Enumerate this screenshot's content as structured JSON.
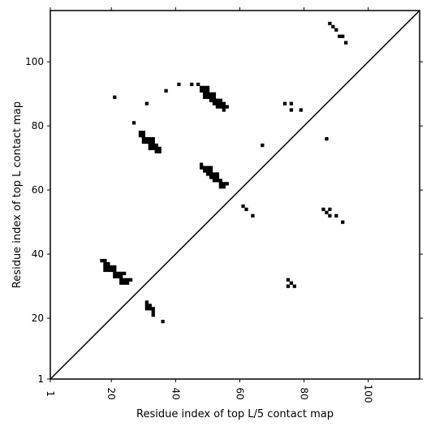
{
  "chart_data": {
    "type": "scatter",
    "title": "",
    "xlabel": "Residue index of top L/5 contact map",
    "ylabel": "Residue index of top L contact map",
    "xlim": [
      1,
      116
    ],
    "ylim": [
      1,
      116
    ],
    "xticks": [
      1,
      20,
      40,
      60,
      80,
      100
    ],
    "yticks": [
      1,
      20,
      40,
      60,
      80,
      100
    ],
    "grid": false,
    "diagonal": true,
    "marker": "square",
    "color": "#000000",
    "points": [
      [
        88,
        112
      ],
      [
        89,
        111
      ],
      [
        90,
        110
      ],
      [
        91,
        108
      ],
      [
        92,
        108
      ],
      [
        93,
        106
      ],
      [
        37,
        91
      ],
      [
        41,
        93
      ],
      [
        45,
        93
      ],
      [
        47,
        93
      ],
      [
        21,
        89
      ],
      [
        31,
        87
      ],
      [
        27,
        81
      ],
      [
        48,
        92
      ],
      [
        49,
        92
      ],
      [
        50,
        92
      ],
      [
        48,
        91
      ],
      [
        49,
        91
      ],
      [
        50,
        91
      ],
      [
        49,
        90
      ],
      [
        50,
        90
      ],
      [
        51,
        90
      ],
      [
        52,
        90
      ],
      [
        49,
        89
      ],
      [
        50,
        89
      ],
      [
        51,
        89
      ],
      [
        52,
        89
      ],
      [
        51,
        88
      ],
      [
        52,
        88
      ],
      [
        53,
        88
      ],
      [
        54,
        88
      ],
      [
        52,
        87
      ],
      [
        53,
        87
      ],
      [
        54,
        87
      ],
      [
        55,
        87
      ],
      [
        53,
        86
      ],
      [
        54,
        86
      ],
      [
        55,
        86
      ],
      [
        56,
        86
      ],
      [
        55,
        85
      ],
      [
        74,
        87
      ],
      [
        76,
        87
      ],
      [
        76,
        85
      ],
      [
        79,
        85
      ],
      [
        67,
        74
      ],
      [
        87,
        76
      ],
      [
        29,
        78
      ],
      [
        30,
        78
      ],
      [
        29,
        77
      ],
      [
        30,
        77
      ],
      [
        30,
        76
      ],
      [
        31,
        76
      ],
      [
        32,
        76
      ],
      [
        33,
        76
      ],
      [
        30,
        75
      ],
      [
        31,
        75
      ],
      [
        32,
        75
      ],
      [
        33,
        75
      ],
      [
        32,
        74
      ],
      [
        33,
        74
      ],
      [
        34,
        74
      ],
      [
        32,
        73
      ],
      [
        33,
        73
      ],
      [
        34,
        73
      ],
      [
        35,
        73
      ],
      [
        34,
        72
      ],
      [
        35,
        72
      ],
      [
        48,
        68
      ],
      [
        48,
        67
      ],
      [
        49,
        67
      ],
      [
        50,
        67
      ],
      [
        51,
        67
      ],
      [
        49,
        66
      ],
      [
        50,
        66
      ],
      [
        51,
        66
      ],
      [
        50,
        65
      ],
      [
        51,
        65
      ],
      [
        52,
        65
      ],
      [
        53,
        65
      ],
      [
        51,
        64
      ],
      [
        52,
        64
      ],
      [
        53,
        64
      ],
      [
        52,
        63
      ],
      [
        53,
        63
      ],
      [
        54,
        63
      ],
      [
        54,
        62
      ],
      [
        55,
        62
      ],
      [
        56,
        62
      ],
      [
        54,
        61
      ],
      [
        55,
        61
      ],
      [
        61,
        55
      ],
      [
        62,
        54
      ],
      [
        64,
        52
      ],
      [
        86,
        54
      ],
      [
        87,
        53
      ],
      [
        88,
        54
      ],
      [
        88,
        52
      ],
      [
        90,
        52
      ],
      [
        92,
        50
      ],
      [
        17,
        38
      ],
      [
        18,
        38
      ],
      [
        18,
        37
      ],
      [
        19,
        37
      ],
      [
        18,
        36
      ],
      [
        19,
        36
      ],
      [
        20,
        36
      ],
      [
        21,
        36
      ],
      [
        18,
        35
      ],
      [
        19,
        35
      ],
      [
        20,
        35
      ],
      [
        21,
        35
      ],
      [
        21,
        34
      ],
      [
        22,
        34
      ],
      [
        23,
        34
      ],
      [
        24,
        34
      ],
      [
        21,
        33
      ],
      [
        22,
        33
      ],
      [
        23,
        33
      ],
      [
        23,
        32
      ],
      [
        24,
        32
      ],
      [
        25,
        32
      ],
      [
        26,
        32
      ],
      [
        23,
        31
      ],
      [
        24,
        31
      ],
      [
        25,
        31
      ],
      [
        75,
        32
      ],
      [
        76,
        31
      ],
      [
        75,
        30
      ],
      [
        77,
        30
      ],
      [
        31,
        25
      ],
      [
        31,
        24
      ],
      [
        32,
        24
      ],
      [
        31,
        23
      ],
      [
        32,
        23
      ],
      [
        33,
        23
      ],
      [
        33,
        22
      ],
      [
        33,
        21
      ],
      [
        36,
        19
      ]
    ]
  }
}
